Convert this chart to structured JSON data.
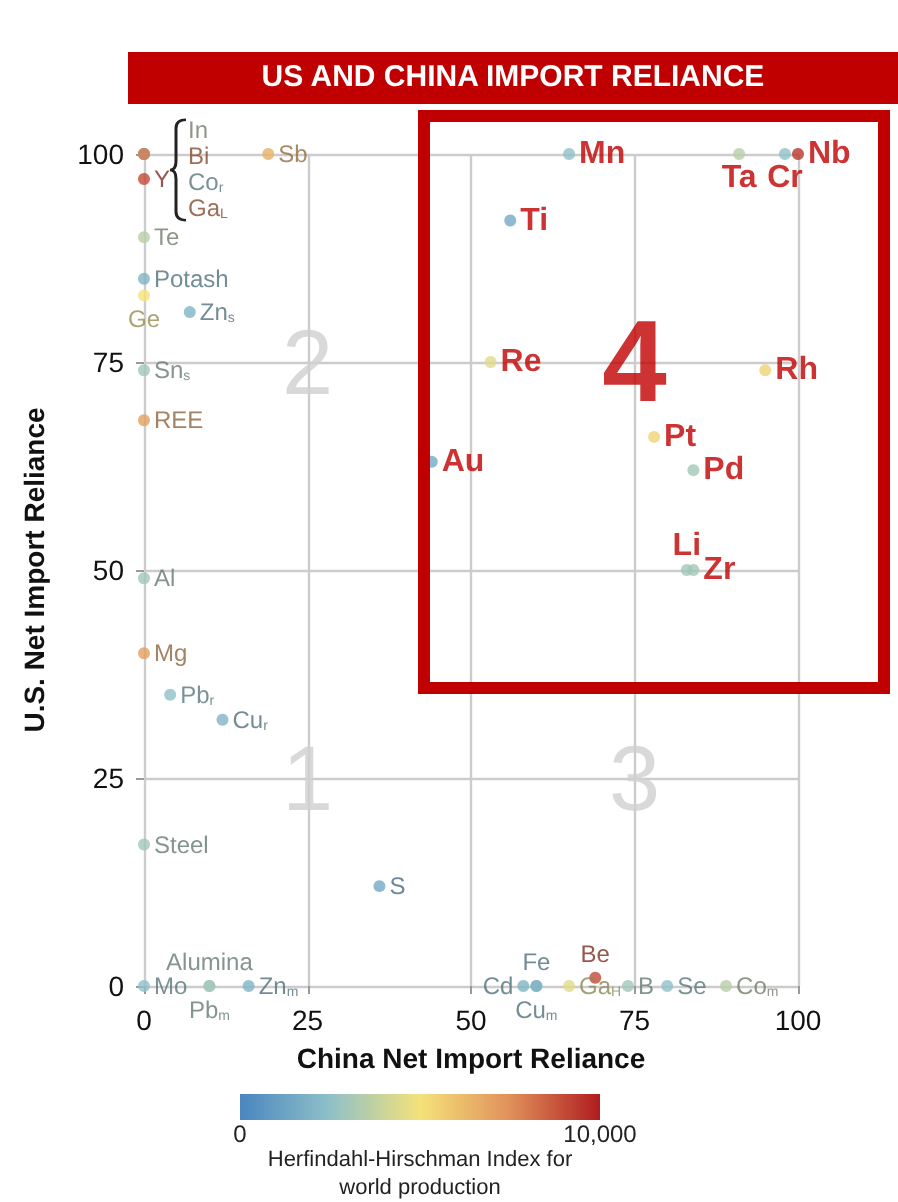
{
  "chart_data": {
    "type": "scatter",
    "title": "US AND CHINA IMPORT RELIANCE",
    "xlabel": "China Net Import Reliance",
    "ylabel": "U.S. Net Import Reliance",
    "clabel": "Herfindahl-Hirschman Index for world production",
    "xlim": [
      0,
      100
    ],
    "ylim": [
      0,
      100
    ],
    "xticks": [
      0,
      25,
      50,
      75,
      100
    ],
    "yticks": [
      0,
      25,
      50,
      75,
      100
    ],
    "grid": true,
    "marker": "circle",
    "clim": [
      0,
      10000
    ],
    "cticks": [
      {
        "value": 0,
        "label": "0"
      },
      {
        "value": 10000,
        "label": "10,000"
      }
    ],
    "series": [
      {
        "x": [
          0,
          0,
          0,
          0,
          0,
          0,
          0,
          0,
          7,
          0,
          0,
          19,
          0,
          0,
          4,
          12,
          0,
          0,
          10,
          10,
          16,
          36,
          44,
          56,
          53,
          65,
          91,
          98,
          100,
          95,
          78,
          84,
          83,
          84,
          58,
          60,
          60,
          65,
          69,
          74,
          80,
          89
        ],
        "values": [
          100,
          100,
          100,
          100,
          97,
          90,
          85,
          83,
          81,
          74,
          68,
          100,
          49,
          40,
          35,
          32,
          17,
          0,
          0,
          0,
          0,
          12,
          63,
          92,
          75,
          100,
          100,
          100,
          100,
          74,
          66,
          62,
          50,
          50,
          0,
          0,
          0,
          0,
          1,
          0,
          0,
          0
        ],
        "cvalues": [
          3500,
          8000,
          2500,
          8000,
          9000,
          3500,
          2000,
          5000,
          2000,
          3000,
          7000,
          6500,
          3000,
          7000,
          2500,
          2000,
          3000,
          2500,
          3000,
          3000,
          2000,
          1500,
          1500,
          1500,
          4500,
          2500,
          3500,
          2500,
          9500,
          5500,
          5500,
          3000,
          3000,
          3000,
          2000,
          2000,
          2000,
          4500,
          9000,
          3000,
          2500,
          3500
        ],
        "value_labels": [
          "In",
          "Bi",
          "Co$_{r}$",
          "Ga$_{L}$",
          "Y",
          "Te",
          "Potash",
          "Ge",
          "Zn$_{s}$",
          "Sn$_{s}$",
          "REE",
          "Sb",
          "Al",
          "Mg",
          "Pb$_{r}$",
          "Cu$_{r}$",
          "Steel",
          "Mo",
          "Alumina",
          "Pb$_{m}$",
          "Zn$_{m}$",
          "S",
          "Au",
          "Ti",
          "Re",
          "Mn",
          "Ta",
          "Cr",
          "Nb",
          "Rh",
          "Pt",
          "Pd",
          "Li",
          "Zr",
          "Cd",
          "Fe",
          "Cu$_{m}$",
          "Ga$_{H}$",
          "Be",
          "B",
          "Se",
          "Co$_{m}$"
        ]
      }
    ],
    "annotations": [
      "1",
      "2",
      "3",
      "4"
    ]
  }
}
